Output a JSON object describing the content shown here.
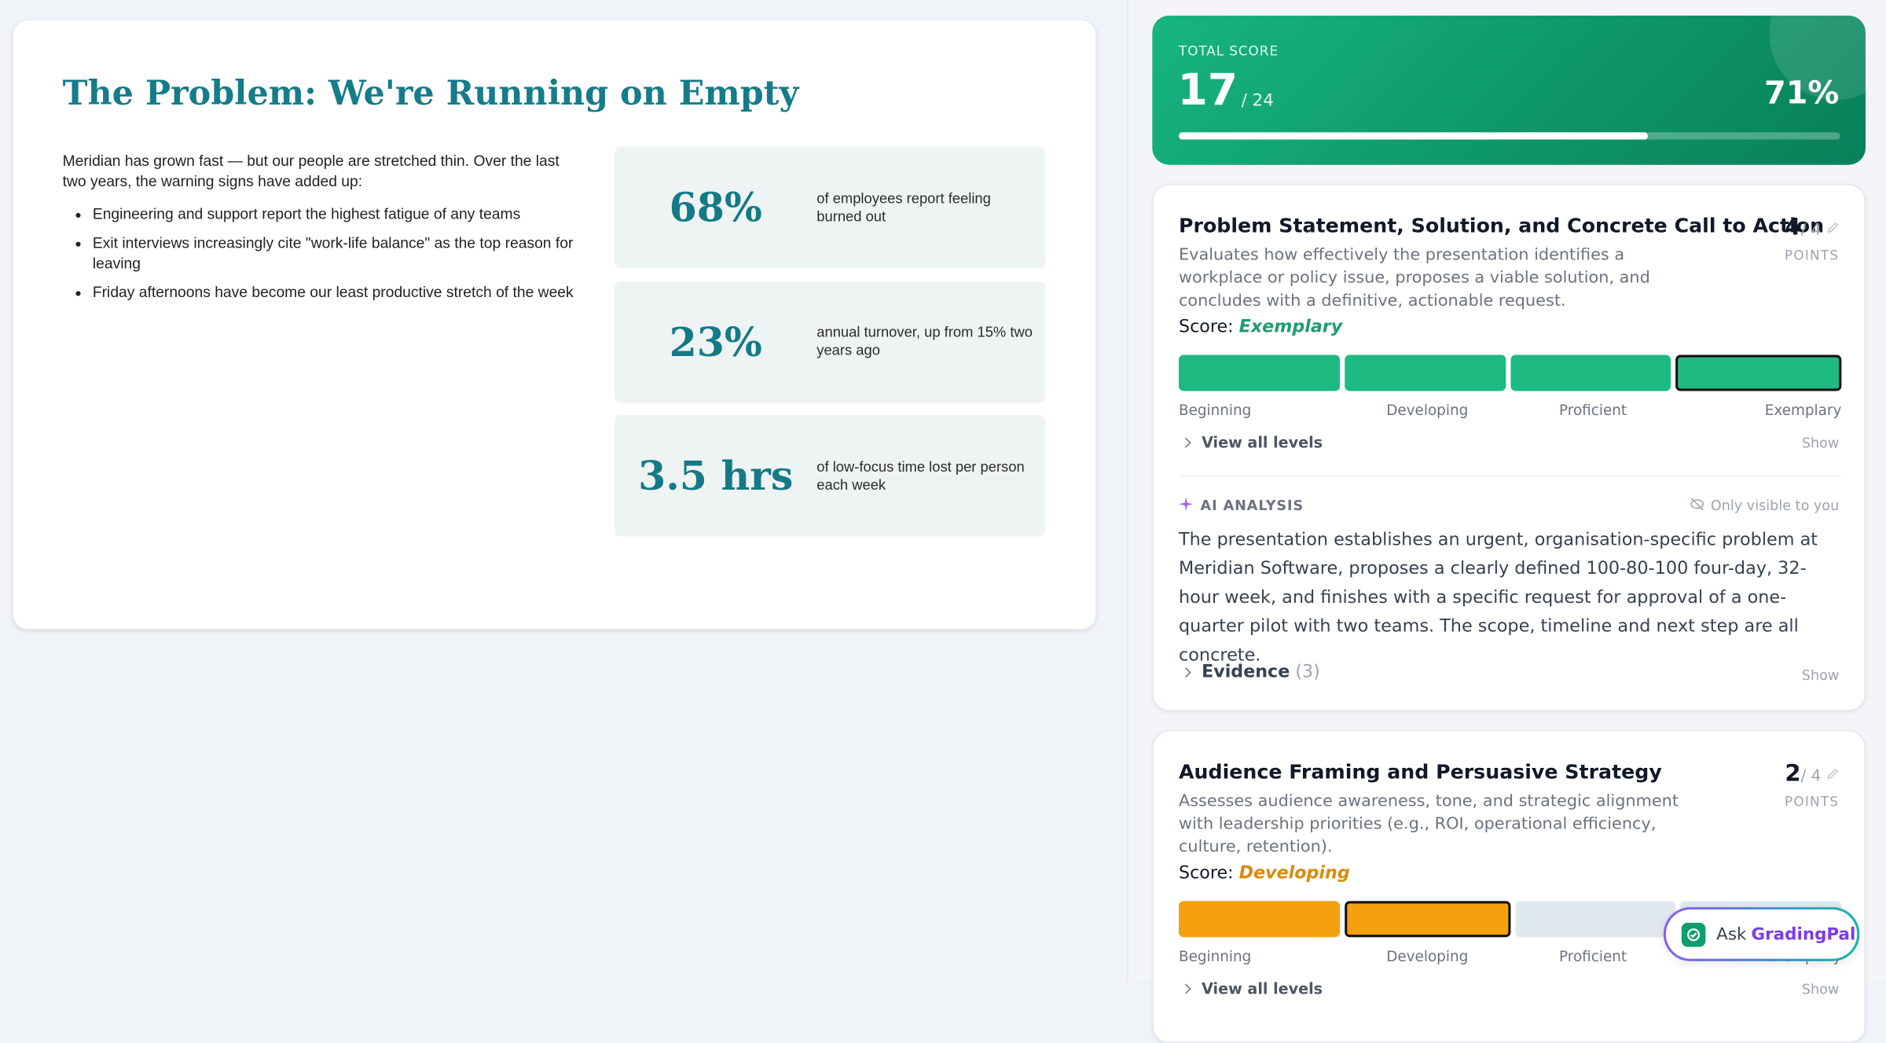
{
  "slide": {
    "title": "The Problem: We're Running on Empty",
    "intro": "Meridian has grown fast — but our people are stretched thin. Over the last two years, the warning signs have added up:",
    "bullets": [
      "Engineering and support report the highest fatigue of any teams",
      "Exit interviews increasingly cite \"work-life balance\" as the top reason for leaving",
      "Friday afternoons have become our least productive stretch of the week"
    ],
    "stats": [
      {
        "value": "68%",
        "label": "of employees report feeling burned out"
      },
      {
        "value": "23%",
        "label": "annual turnover, up from 15% two years ago"
      },
      {
        "value": "3.5 hrs",
        "label": "of low-focus time lost per person each week"
      }
    ]
  },
  "total": {
    "label": "TOTAL SCORE",
    "value": 17,
    "max": 24,
    "max_label": "/ 24",
    "percent": "71%"
  },
  "criteria": [
    {
      "name": "Problem Statement, Solution, and Concrete Call to Action",
      "description": "Evaluates how effectively the presentation identifies a workplace or policy issue, proposes a viable solution, and concludes with a definitive, actionable request.",
      "score_label": "Score:",
      "level": "Exemplary",
      "color": "#1dbb82",
      "level_color": "#1f9d6b",
      "points": 4,
      "max_label": "/ 4",
      "points_label": "POINTS",
      "levels": [
        "Beginning",
        "Developing",
        "Proficient",
        "Exemplary"
      ],
      "view_levels": "View all levels",
      "show": "Show",
      "ai_heading": "AI ANALYSIS",
      "visibility": "Only visible to you",
      "analysis": "The presentation establishes an urgent, organisation-specific problem at Meridian Software, proposes a clearly defined 100-80-100 four-day, 32-hour week, and finishes with a specific request for approval of a one-quarter pilot with two teams. The scope, timeline and next step are all concrete.",
      "evidence": "Evidence",
      "evidence_count": "(3)",
      "evidence_show": "Show"
    },
    {
      "name": "Audience Framing and Persuasive Strategy",
      "description": "Assesses audience awareness, tone, and strategic alignment with leadership priorities (e.g., ROI, operational efficiency, culture, retention).",
      "score_label": "Score:",
      "level": "Developing",
      "color": "#f4a00f",
      "level_color": "#d98a0a",
      "points": 2,
      "max_label": "/ 4",
      "points_label": "POINTS",
      "levels": [
        "Beginning",
        "Developing",
        "Proficient",
        "Exemplary"
      ],
      "view_levels": "View all levels",
      "show": "Show"
    }
  ],
  "assistant": {
    "prefix": "Ask",
    "name": "GradingPal"
  }
}
